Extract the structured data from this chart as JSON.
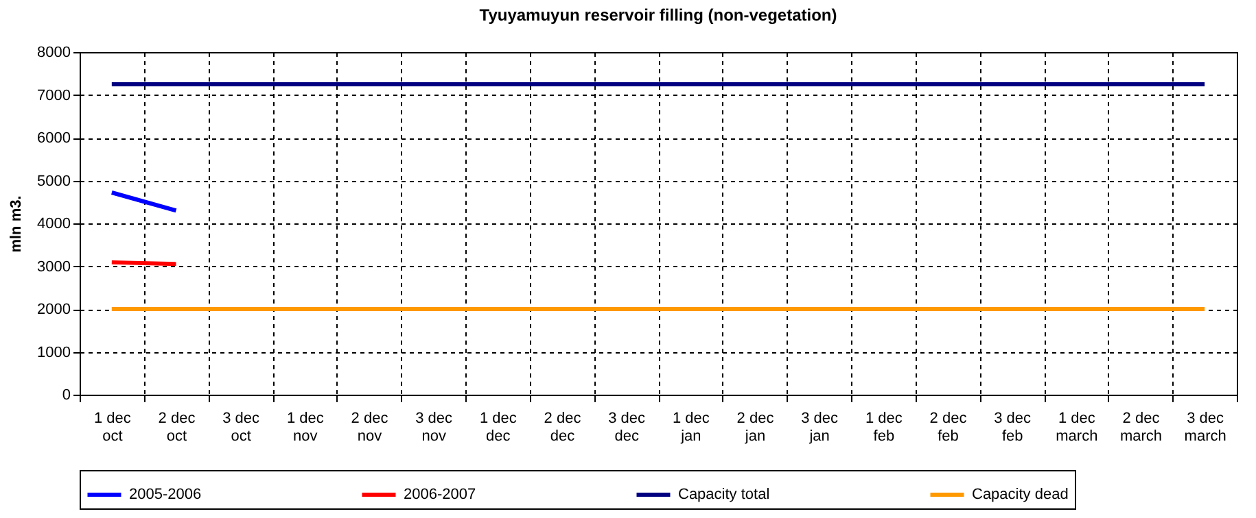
{
  "chart_data": {
    "type": "line",
    "title": "Tyuyamuyun reservoir filling (non-vegetation)",
    "ylabel": "mln m3.",
    "categories": [
      "1 dec\noct",
      "2 dec\noct",
      "3 dec\noct",
      "1 dec\nnov",
      "2 dec\nnov",
      "3 dec\nnov",
      "1 dec\ndec",
      "2 dec\ndec",
      "3 dec\ndec",
      "1 dec\njan",
      "2 dec\njan",
      "3 dec\njan",
      "1 dec\nfeb",
      "2 dec\nfeb",
      "3 dec\nfeb",
      "1 dec\nmarch",
      "2 dec\nmarch",
      "3 dec\nmarch"
    ],
    "series": [
      {
        "name": "2005-2006",
        "color": "#0000ff",
        "values": [
          4720,
          4300,
          null,
          null,
          null,
          null,
          null,
          null,
          null,
          null,
          null,
          null,
          null,
          null,
          null,
          null,
          null,
          null
        ]
      },
      {
        "name": "2006-2007",
        "color": "#ff0000",
        "values": [
          3090,
          3050,
          null,
          null,
          null,
          null,
          null,
          null,
          null,
          null,
          null,
          null,
          null,
          null,
          null,
          null,
          null,
          null
        ]
      },
      {
        "name": "Capacity total",
        "color": "#000080",
        "values": [
          7250,
          7250,
          7250,
          7250,
          7250,
          7250,
          7250,
          7250,
          7250,
          7250,
          7250,
          7250,
          7250,
          7250,
          7250,
          7250,
          7250,
          7250
        ]
      },
      {
        "name": "Capacity dead",
        "color": "#ff9900",
        "values": [
          2000,
          2000,
          2000,
          2000,
          2000,
          2000,
          2000,
          2000,
          2000,
          2000,
          2000,
          2000,
          2000,
          2000,
          2000,
          2000,
          2000,
          2000
        ]
      }
    ],
    "ylim": [
      0,
      8000
    ],
    "yticks": [
      0,
      1000,
      2000,
      3000,
      4000,
      5000,
      6000,
      7000,
      8000
    ],
    "grid": true,
    "legend": "bottom",
    "marker": "none",
    "line_style": "solid"
  }
}
